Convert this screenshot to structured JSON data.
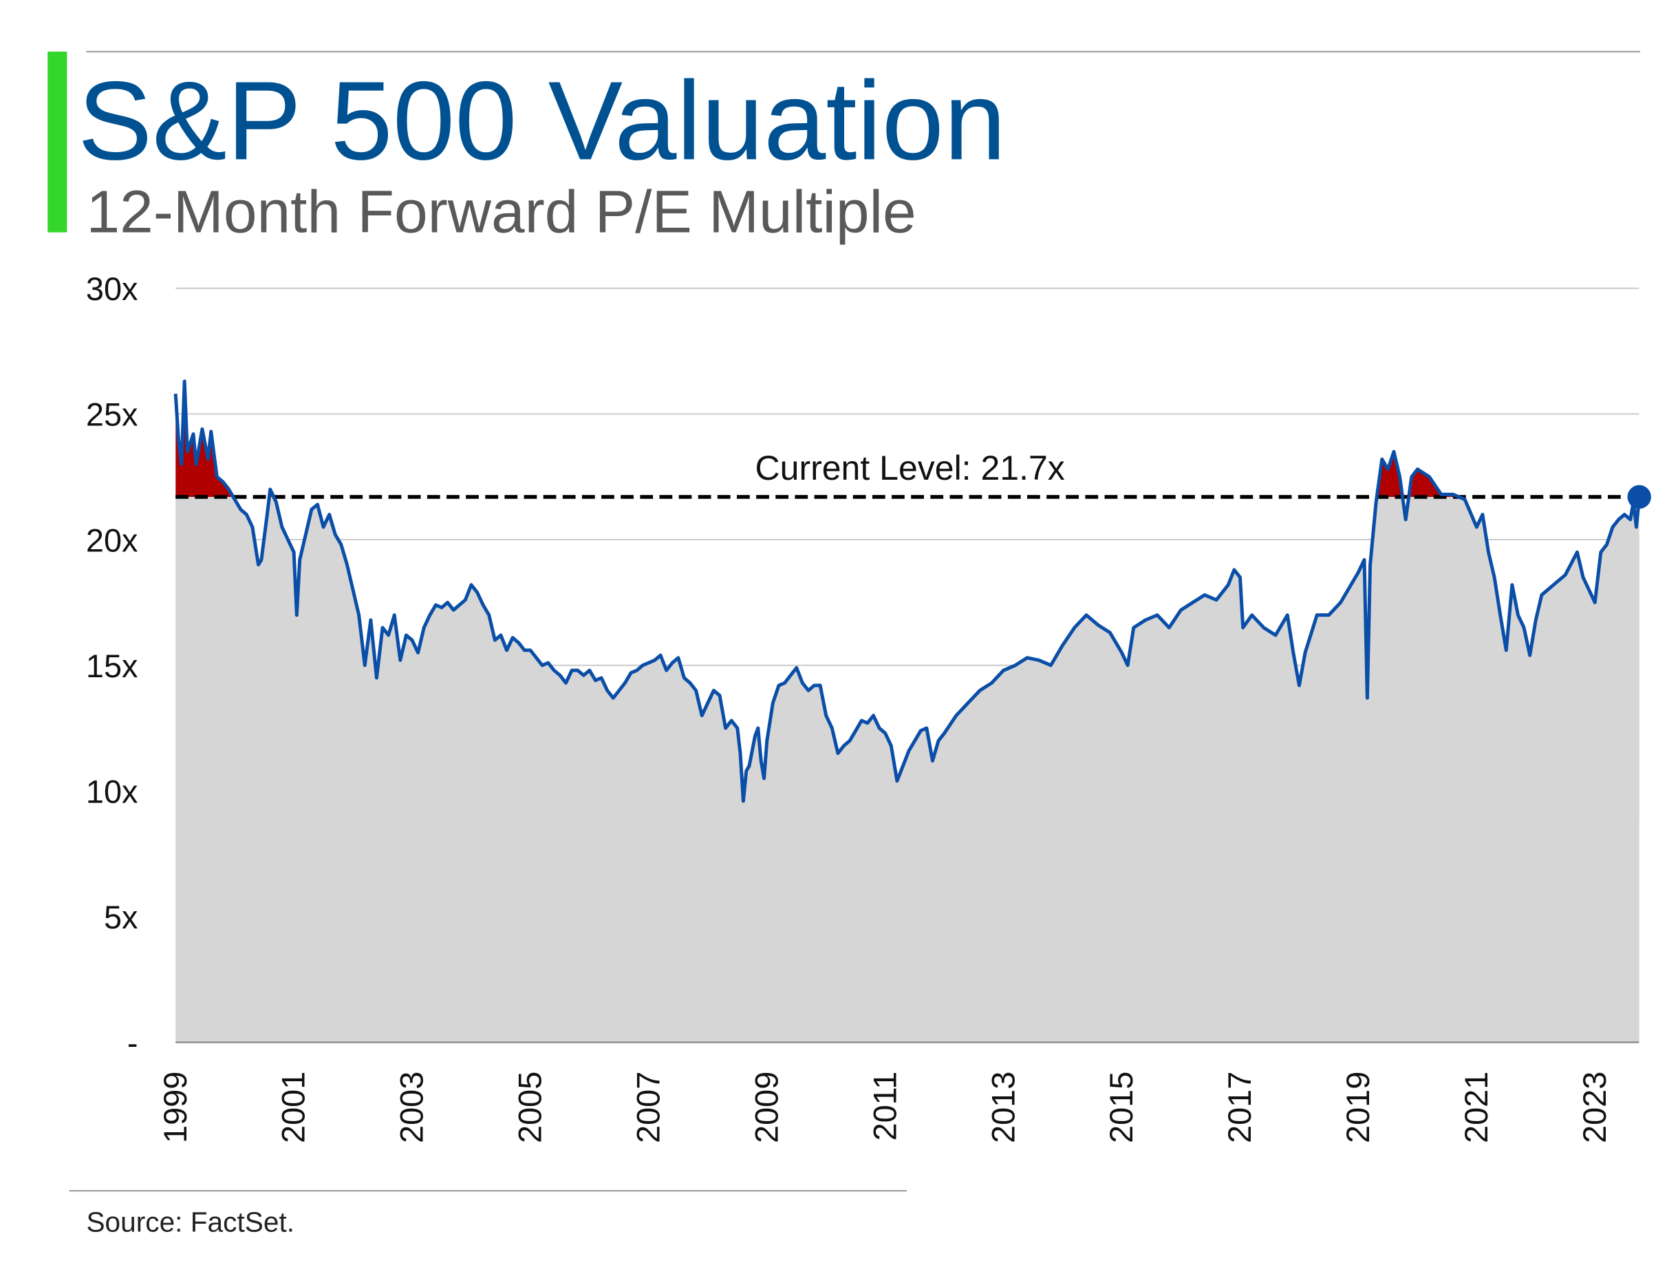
{
  "header": {
    "title": "S&P 500 Valuation",
    "subtitle": "12-Month Forward P/E Multiple"
  },
  "footer": {
    "source": "Source: FactSet."
  },
  "colors": {
    "title": "#005192",
    "subtitle": "#595959",
    "accent_bar": "#33d62b",
    "line": "#0a4ea8",
    "area": "#d6d6d6",
    "above_current": "#b00000",
    "dot": "#0a4ea8"
  },
  "chart_data": {
    "type": "area",
    "title": "S&P 500 Valuation",
    "subtitle": "12-Month Forward P/E Multiple",
    "xlabel": "",
    "ylabel": "",
    "ylim": [
      0,
      30
    ],
    "xlim": [
      1999,
      2023.75
    ],
    "grid": true,
    "yticks": [
      0,
      5,
      10,
      15,
      20,
      25,
      30
    ],
    "ytick_labels": [
      "-",
      "5x",
      "10x",
      "15x",
      "20x",
      "25x",
      "30x"
    ],
    "xticks": [
      1999,
      2001,
      2003,
      2005,
      2007,
      2009,
      2011,
      2013,
      2015,
      2017,
      2019,
      2021,
      2023
    ],
    "xtick_labels": [
      "1999",
      "2001",
      "2003",
      "2005",
      "2007",
      "2009",
      "2011",
      "2013",
      "2015",
      "2017",
      "2019",
      "2021",
      "2023"
    ],
    "current_level": 21.7,
    "current_label": "Current Level: 21.7x",
    "series": [
      {
        "name": "12-Month Forward P/E",
        "x": [
          1999.0,
          1999.05,
          1999.1,
          1999.15,
          1999.2,
          1999.3,
          1999.35,
          1999.45,
          1999.55,
          1999.6,
          1999.7,
          1999.8,
          1999.9,
          2000.0,
          2000.1,
          2000.2,
          2000.3,
          2000.4,
          2000.45,
          2000.55,
          2000.6,
          2000.7,
          2000.8,
          2000.9,
          2001.0,
          2001.05,
          2001.1,
          2001.2,
          2001.3,
          2001.4,
          2001.5,
          2001.6,
          2001.7,
          2001.8,
          2001.9,
          2002.0,
          2002.1,
          2002.2,
          2002.3,
          2002.4,
          2002.5,
          2002.6,
          2002.7,
          2002.8,
          2002.9,
          2003.0,
          2003.1,
          2003.2,
          2003.3,
          2003.4,
          2003.5,
          2003.6,
          2003.7,
          2003.8,
          2003.9,
          2004.0,
          2004.1,
          2004.2,
          2004.3,
          2004.4,
          2004.5,
          2004.6,
          2004.7,
          2004.8,
          2004.9,
          2005.0,
          2005.1,
          2005.2,
          2005.3,
          2005.4,
          2005.5,
          2005.6,
          2005.7,
          2005.8,
          2005.9,
          2006.0,
          2006.1,
          2006.2,
          2006.3,
          2006.4,
          2006.5,
          2006.6,
          2006.7,
          2006.8,
          2006.9,
          2007.0,
          2007.1,
          2007.2,
          2007.3,
          2007.4,
          2007.5,
          2007.6,
          2007.7,
          2007.8,
          2007.9,
          2008.0,
          2008.1,
          2008.2,
          2008.3,
          2008.4,
          2008.5,
          2008.55,
          2008.6,
          2008.65,
          2008.7,
          2008.8,
          2008.85,
          2008.9,
          2008.95,
          2009.0,
          2009.1,
          2009.2,
          2009.3,
          2009.4,
          2009.5,
          2009.6,
          2009.7,
          2009.8,
          2009.9,
          2010.0,
          2010.1,
          2010.2,
          2010.3,
          2010.4,
          2010.5,
          2010.6,
          2010.7,
          2010.8,
          2010.9,
          2011.0,
          2011.1,
          2011.2,
          2011.3,
          2011.4,
          2011.5,
          2011.6,
          2011.7,
          2011.8,
          2011.9,
          2012.0,
          2012.2,
          2012.4,
          2012.6,
          2012.8,
          2013.0,
          2013.2,
          2013.4,
          2013.6,
          2013.8,
          2014.0,
          2014.2,
          2014.4,
          2014.6,
          2014.8,
          2015.0,
          2015.1,
          2015.2,
          2015.4,
          2015.6,
          2015.8,
          2016.0,
          2016.2,
          2016.4,
          2016.6,
          2016.8,
          2016.9,
          2017.0,
          2017.05,
          2017.2,
          2017.4,
          2017.6,
          2017.8,
          2017.9,
          2018.0,
          2018.1,
          2018.3,
          2018.5,
          2018.7,
          2018.9,
          2019.0,
          2019.1,
          2019.15,
          2019.2,
          2019.3,
          2019.4,
          2019.5,
          2019.6,
          2019.7,
          2019.8,
          2019.9,
          2020.0,
          2020.2,
          2020.4,
          2020.6,
          2020.8,
          2021.0,
          2021.1,
          2021.2,
          2021.3,
          2021.4,
          2021.5,
          2021.6,
          2021.7,
          2021.8,
          2021.9,
          2022.0,
          2022.1,
          2022.3,
          2022.5,
          2022.7,
          2022.8,
          2022.9,
          2023.0,
          2023.1,
          2023.2,
          2023.3,
          2023.4,
          2023.5,
          2023.6,
          2023.65,
          2023.7,
          2023.75
        ],
        "y": [
          25.8,
          24.0,
          23.0,
          26.3,
          23.5,
          24.2,
          23.0,
          24.4,
          23.2,
          24.3,
          22.5,
          22.3,
          22.0,
          21.6,
          21.2,
          21.0,
          20.5,
          19.0,
          19.2,
          21.0,
          22.0,
          21.5,
          20.5,
          20.0,
          19.5,
          17.0,
          19.2,
          20.2,
          21.2,
          21.4,
          20.5,
          21.0,
          20.2,
          19.8,
          19.0,
          18.0,
          17.0,
          15.0,
          16.8,
          14.5,
          16.5,
          16.2,
          17.0,
          15.2,
          16.2,
          16.0,
          15.5,
          16.5,
          17.0,
          17.4,
          17.3,
          17.5,
          17.2,
          17.4,
          17.6,
          18.2,
          17.9,
          17.4,
          17.0,
          16.0,
          16.2,
          15.6,
          16.1,
          15.9,
          15.6,
          15.6,
          15.3,
          15.0,
          15.1,
          14.8,
          14.6,
          14.3,
          14.8,
          14.8,
          14.6,
          14.8,
          14.4,
          14.5,
          14.0,
          13.7,
          14.0,
          14.3,
          14.7,
          14.8,
          15.0,
          15.1,
          15.2,
          15.4,
          14.8,
          15.1,
          15.3,
          14.5,
          14.3,
          14.0,
          13.0,
          13.5,
          14.0,
          13.8,
          12.5,
          12.8,
          12.5,
          11.5,
          9.6,
          10.8,
          11.0,
          12.2,
          12.5,
          11.2,
          10.5,
          12.0,
          13.5,
          14.2,
          14.3,
          14.6,
          14.9,
          14.3,
          14.0,
          14.2,
          14.2,
          13.0,
          12.5,
          11.5,
          11.8,
          12.0,
          12.4,
          12.8,
          12.7,
          13.0,
          12.5,
          12.3,
          11.8,
          10.4,
          11.0,
          11.6,
          12.0,
          12.4,
          12.5,
          11.2,
          12.0,
          12.3,
          13.0,
          13.5,
          14.0,
          14.3,
          14.8,
          15.0,
          15.3,
          15.2,
          15.0,
          15.8,
          16.5,
          17.0,
          16.6,
          16.3,
          15.5,
          15.0,
          16.5,
          16.8,
          17.0,
          16.5,
          17.2,
          17.5,
          17.8,
          17.6,
          18.2,
          18.8,
          18.5,
          16.5,
          17.0,
          16.5,
          16.2,
          17.0,
          15.5,
          14.2,
          15.5,
          17.0,
          17.0,
          17.5,
          18.3,
          18.7,
          19.2,
          13.7,
          19.0,
          21.5,
          23.2,
          22.8,
          23.5,
          22.5,
          20.8,
          22.5,
          22.8,
          22.5,
          21.8,
          21.8,
          21.6,
          20.5,
          21.0,
          19.5,
          18.5,
          17.0,
          15.6,
          18.2,
          17.0,
          16.5,
          15.4,
          16.8,
          17.8,
          18.2,
          18.6,
          19.5,
          18.5,
          18.0,
          17.5,
          19.5,
          19.8,
          20.5,
          20.8,
          21.0,
          20.8,
          21.5,
          20.5,
          21.7
        ]
      }
    ]
  }
}
